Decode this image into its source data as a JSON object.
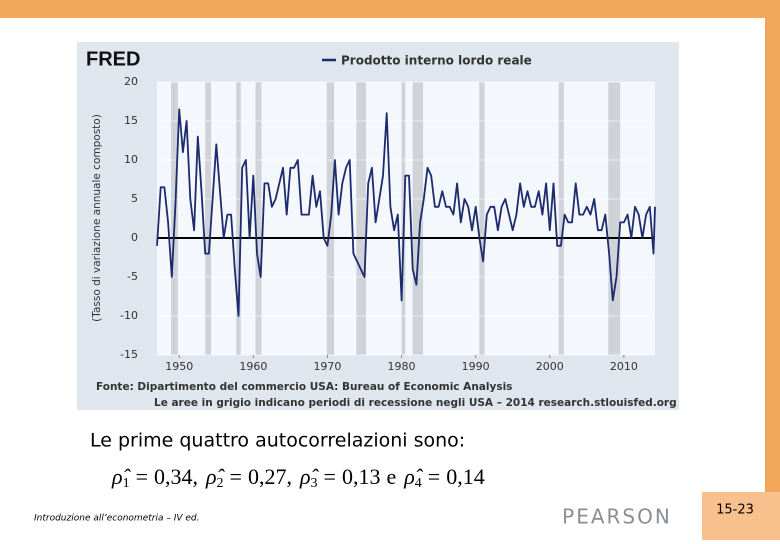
{
  "chart_data": {
    "type": "line",
    "logo": "FRED",
    "ylabel": "(Tasso di variazione annuale composto)",
    "source": "Fonte: Dipartimento del commercio USA: Bureau of Economic Analysis",
    "note": "Le aree in grigio indicano periodi di recessione negli USA – 2014 research.stlouisfed.org",
    "xlim": [
      1947,
      2014.2
    ],
    "ylim": [
      -15,
      20
    ],
    "xticks": [
      1950,
      1960,
      1970,
      1980,
      1990,
      2000,
      2010
    ],
    "yticks": [
      -15,
      -10,
      -5,
      0,
      5,
      10,
      15,
      20
    ],
    "recessions": [
      [
        1948.9,
        1949.8
      ],
      [
        1953.5,
        1954.3
      ],
      [
        1957.7,
        1958.3
      ],
      [
        1960.3,
        1961.1
      ],
      [
        1969.9,
        1970.9
      ],
      [
        1973.9,
        1975.2
      ],
      [
        1980.0,
        1980.5
      ],
      [
        1981.5,
        1982.9
      ],
      [
        1990.5,
        1991.2
      ],
      [
        2001.2,
        2001.9
      ],
      [
        2007.9,
        2009.5
      ]
    ],
    "x": [
      1947,
      1947.5,
      1948,
      1948.5,
      1949,
      1949.5,
      1950,
      1950.5,
      1951,
      1951.5,
      1952,
      1952.5,
      1953,
      1953.5,
      1954,
      1954.5,
      1955,
      1955.5,
      1956,
      1956.5,
      1957,
      1957.5,
      1958,
      1958.5,
      1959,
      1959.5,
      1960,
      1960.5,
      1961,
      1961.5,
      1962,
      1962.5,
      1963,
      1963.5,
      1964,
      1964.5,
      1965,
      1965.5,
      1966,
      1966.5,
      1967,
      1967.5,
      1968,
      1968.5,
      1969,
      1969.5,
      1970,
      1970.5,
      1971,
      1971.5,
      1972,
      1972.5,
      1973,
      1973.5,
      1974,
      1974.5,
      1975,
      1975.5,
      1976,
      1976.5,
      1977,
      1977.5,
      1978,
      1978.5,
      1979,
      1979.5,
      1980,
      1980.5,
      1981,
      1981.5,
      1982,
      1982.5,
      1983,
      1983.5,
      1984,
      1984.5,
      1985,
      1985.5,
      1986,
      1986.5,
      1987,
      1987.5,
      1988,
      1988.5,
      1989,
      1989.5,
      1990,
      1990.5,
      1991,
      1991.5,
      1992,
      1992.5,
      1993,
      1993.5,
      1994,
      1994.5,
      1995,
      1995.5,
      1996,
      1996.5,
      1997,
      1997.5,
      1998,
      1998.5,
      1999,
      1999.5,
      2000,
      2000.5,
      2001,
      2001.5,
      2002,
      2002.5,
      2003,
      2003.5,
      2004,
      2004.5,
      2005,
      2005.5,
      2006,
      2006.5,
      2007,
      2007.5,
      2008,
      2008.5,
      2009,
      2009.5,
      2010,
      2010.5,
      2011,
      2011.5,
      2012,
      2012.5,
      2013,
      2013.5,
      2014,
      2014.2
    ],
    "series": [
      {
        "name": "Prodotto interno lordo reale",
        "color": "#1c2a6e",
        "values": [
          -1,
          6.5,
          6.5,
          2,
          -5,
          4.5,
          16.5,
          11,
          15,
          5,
          1,
          13,
          6,
          -2,
          -2,
          5,
          12,
          6,
          0,
          3,
          3,
          -4,
          -10,
          9,
          10,
          0,
          8,
          -2,
          -5,
          7,
          7,
          4,
          5,
          7,
          9,
          3,
          9,
          9,
          10,
          3,
          3,
          3,
          8,
          4,
          6,
          0,
          -1,
          3,
          10,
          3,
          7,
          9,
          10,
          -2,
          -3,
          -4,
          -5,
          7,
          9,
          2,
          5,
          8,
          16,
          4,
          1,
          3,
          -8,
          8,
          8,
          -4,
          -6,
          2,
          5,
          9,
          8,
          4,
          4,
          6,
          4,
          4,
          3,
          7,
          2,
          5,
          4,
          1,
          4,
          0,
          -3,
          3,
          4,
          4,
          1,
          4,
          5,
          3,
          1,
          3,
          7,
          4,
          6,
          4,
          4,
          6,
          3,
          7,
          1,
          7,
          -1,
          -1,
          3,
          2,
          2,
          7,
          3,
          3,
          4,
          3,
          5,
          1,
          1,
          3,
          -2,
          -8,
          -5,
          2,
          2,
          3,
          0,
          4,
          3,
          0,
          3,
          4,
          -2,
          4
        ]
      }
    ]
  },
  "slide": {
    "text": "Le prime quattro autocorrelazioni sono:",
    "symbol": "ρ̂",
    "eq": "=",
    "formula": [
      {
        "sub": "1",
        "value": "0,34",
        "sep": ","
      },
      {
        "sub": "2",
        "value": "0,27",
        "sep": ","
      },
      {
        "sub": "3",
        "value": "0,13",
        "sep": "e"
      },
      {
        "sub": "4",
        "value": "0,14"
      }
    ],
    "footer": "Introduzione all’econometria – IV ed.",
    "publisher": "PEARSON",
    "page": "15-23"
  }
}
